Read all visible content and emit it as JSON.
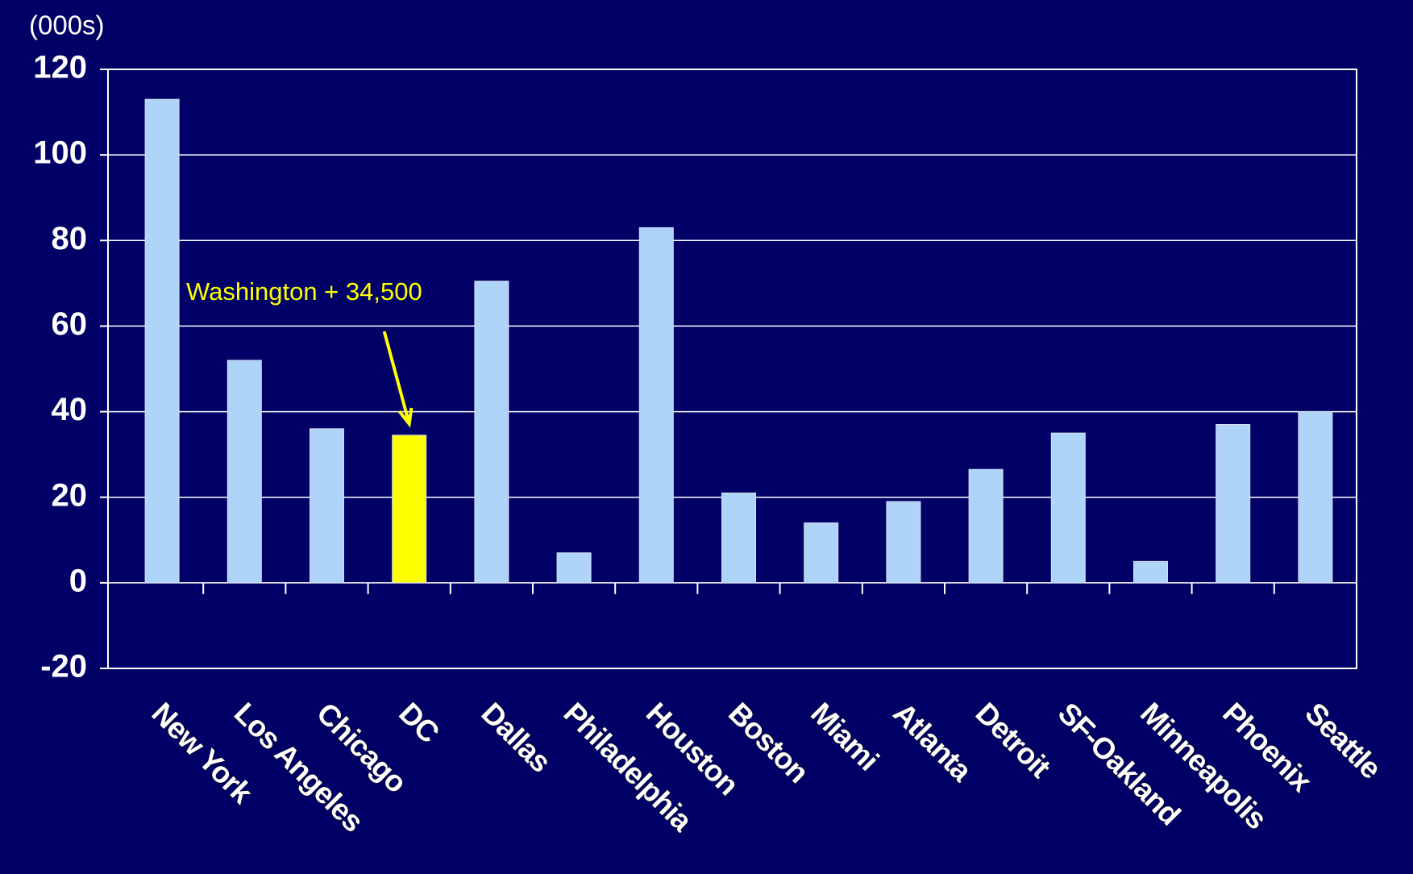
{
  "chart_data": {
    "type": "bar",
    "y_unit_label": "(000s)",
    "categories": [
      "New York",
      "Los Angeles",
      "Chicago",
      "DC",
      "Dallas",
      "Philadelphia",
      "Houston",
      "Boston",
      "Miami",
      "Atlanta",
      "Detroit",
      "SF-Oakland",
      "Minneapolis",
      "Phoenix",
      "Seattle"
    ],
    "values": [
      113,
      52,
      36,
      34.5,
      70.5,
      7,
      83,
      21,
      14,
      19,
      26.5,
      35,
      5,
      37,
      40
    ],
    "colors": [
      "#aed4fa",
      "#aed4fa",
      "#aed4fa",
      "#ffff00",
      "#aed4fa",
      "#aed4fa",
      "#aed4fa",
      "#aed4fa",
      "#aed4fa",
      "#aed4fa",
      "#aed4fa",
      "#aed4fa",
      "#aed4fa",
      "#aed4fa",
      "#aed4fa"
    ],
    "annotations": [
      {
        "text": "Washington + 34,500",
        "color": "#ffff00"
      }
    ],
    "ylim": [
      -20,
      120
    ],
    "yticks": [
      -20,
      0,
      20,
      40,
      60,
      80,
      100,
      120
    ],
    "grid": true
  }
}
